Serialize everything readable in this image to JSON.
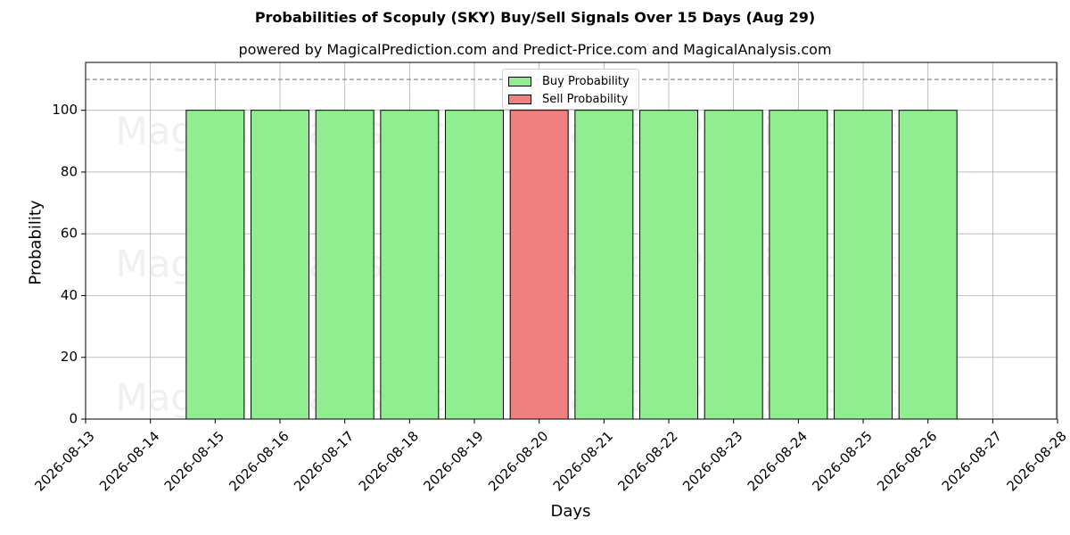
{
  "header": {
    "title": "Probabilities of Scopuly (SKY) Buy/Sell Signals Over 15 Days (Aug 29)",
    "subtitle": "powered by MagicalPrediction.com and Predict-Price.com and MagicalAnalysis.com"
  },
  "watermarks": {
    "left": "MagicalAnalysis.com",
    "right": "MagicalPrediction.com"
  },
  "colors": {
    "buy": "#90ee90",
    "sell": "#f08080",
    "grid": "#b0b0b0",
    "reference_line": "#808080"
  },
  "legend": {
    "buy_label": "Buy Probability",
    "sell_label": "Sell Probability",
    "placement": "top-center"
  },
  "chart_data": {
    "type": "bar",
    "title": "Probabilities of Scopuly (SKY) Buy/Sell Signals Over 15 Days (Aug 29)",
    "subtitle": "powered by MagicalPrediction.com and Predict-Price.com and MagicalAnalysis.com",
    "xlabel": "Days",
    "ylabel": "Probability",
    "x_ticks": [
      "2026-08-13",
      "2026-08-14",
      "2026-08-15",
      "2026-08-16",
      "2026-08-17",
      "2026-08-18",
      "2026-08-19",
      "2026-08-20",
      "2026-08-21",
      "2026-08-22",
      "2026-08-23",
      "2026-08-24",
      "2026-08-25",
      "2026-08-26",
      "2026-08-27",
      "2026-08-28"
    ],
    "y_ticks": [
      0,
      20,
      40,
      60,
      80,
      100
    ],
    "ylim": [
      0,
      115.5
    ],
    "reference_line": 110,
    "grid": true,
    "categories": [
      "2026-08-15",
      "2026-08-16",
      "2026-08-17",
      "2026-08-18",
      "2026-08-19",
      "2026-08-20",
      "2026-08-21",
      "2026-08-22",
      "2026-08-23",
      "2026-08-24",
      "2026-08-25",
      "2026-08-26"
    ],
    "series": [
      {
        "name": "Buy Probability",
        "values": [
          100,
          100,
          100,
          100,
          100,
          0,
          100,
          100,
          100,
          100,
          100,
          100
        ]
      },
      {
        "name": "Sell Probability",
        "values": [
          0,
          0,
          0,
          0,
          0,
          100,
          0,
          0,
          0,
          0,
          0,
          0
        ]
      }
    ]
  }
}
